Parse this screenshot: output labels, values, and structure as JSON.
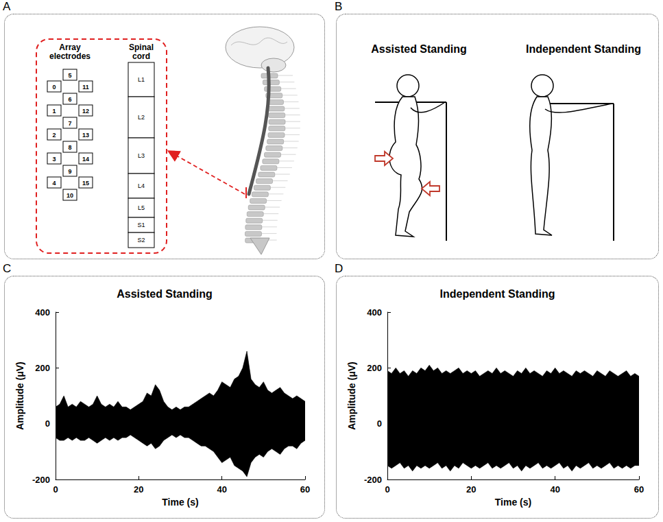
{
  "panels": [
    {
      "letter": "A",
      "array_title": "Array electrodes",
      "spinal_title": "Spinal cord",
      "electrodes": {
        "left": [
          0,
          1,
          2,
          3,
          4
        ],
        "middle": [
          5,
          6,
          7,
          8,
          9,
          10
        ],
        "right": [
          11,
          12,
          13,
          14,
          15
        ]
      },
      "segments": [
        "L1",
        "L2",
        "L3",
        "L4",
        "L5",
        "S1",
        "S2"
      ]
    },
    {
      "letter": "B",
      "left_title": "Assisted Standing",
      "right_title": "Independent Standing"
    },
    {
      "letter": "C"
    },
    {
      "letter": "D"
    }
  ],
  "chart_data": [
    {
      "type": "band",
      "title": "Assisted Standing",
      "x_label": "Time (s)",
      "y_label": "Amplitude (μV)",
      "color": "#000000",
      "xlim": [
        0,
        60
      ],
      "xticks": [
        0,
        20,
        40,
        60
      ],
      "ylim": [
        -200,
        400
      ],
      "yticks": [
        -200,
        0,
        200,
        400
      ],
      "grid": false,
      "x": [
        0,
        1,
        2,
        3,
        4,
        5,
        6,
        7,
        8,
        9,
        10,
        11,
        12,
        13,
        14,
        15,
        16,
        17,
        18,
        19,
        20,
        21,
        22,
        23,
        24,
        25,
        26,
        27,
        28,
        29,
        30,
        31,
        32,
        33,
        34,
        35,
        36,
        37,
        38,
        39,
        40,
        41,
        42,
        43,
        44,
        45,
        46,
        47,
        48,
        49,
        50,
        51,
        52,
        53,
        54,
        55,
        56,
        57,
        58,
        59,
        60
      ],
      "upper": [
        60,
        70,
        100,
        60,
        70,
        60,
        80,
        70,
        60,
        70,
        100,
        70,
        60,
        70,
        60,
        80,
        60,
        60,
        50,
        60,
        70,
        80,
        110,
        100,
        140,
        120,
        80,
        60,
        50,
        60,
        50,
        60,
        60,
        70,
        80,
        90,
        100,
        110,
        100,
        120,
        150,
        140,
        130,
        160,
        170,
        200,
        260,
        160,
        140,
        130,
        150,
        120,
        110,
        120,
        130,
        110,
        100,
        90,
        100,
        90,
        80
      ],
      "lower": [
        -50,
        -60,
        -60,
        -50,
        -60,
        -50,
        -60,
        -60,
        -50,
        -60,
        -70,
        -60,
        -50,
        -60,
        -50,
        -60,
        -50,
        -50,
        -40,
        -50,
        -60,
        -70,
        -80,
        -70,
        -90,
        -80,
        -60,
        -50,
        -40,
        -50,
        -40,
        -50,
        -50,
        -60,
        -70,
        -80,
        -80,
        -90,
        -100,
        -120,
        -140,
        -130,
        -120,
        -150,
        -160,
        -170,
        -190,
        -140,
        -120,
        -110,
        -120,
        -100,
        -90,
        -100,
        -110,
        -90,
        -80,
        -80,
        -90,
        -70,
        -60
      ]
    },
    {
      "type": "band",
      "title": "Independent Standing",
      "x_label": "Time (s)",
      "y_label": "Amplitude (μV)",
      "color": "#000000",
      "xlim": [
        0,
        60
      ],
      "xticks": [
        0,
        20,
        40,
        60
      ],
      "ylim": [
        -200,
        400
      ],
      "yticks": [
        -200,
        0,
        200,
        400
      ],
      "grid": false,
      "x": [
        0,
        1,
        2,
        3,
        4,
        5,
        6,
        7,
        8,
        9,
        10,
        11,
        12,
        13,
        14,
        15,
        16,
        17,
        18,
        19,
        20,
        21,
        22,
        23,
        24,
        25,
        26,
        27,
        28,
        29,
        30,
        31,
        32,
        33,
        34,
        35,
        36,
        37,
        38,
        39,
        40,
        41,
        42,
        43,
        44,
        45,
        46,
        47,
        48,
        49,
        50,
        51,
        52,
        53,
        54,
        55,
        56,
        57,
        58,
        59,
        60
      ],
      "upper": [
        190,
        180,
        200,
        180,
        190,
        170,
        190,
        180,
        200,
        190,
        210,
        190,
        200,
        180,
        190,
        180,
        190,
        200,
        180,
        190,
        180,
        190,
        170,
        180,
        190,
        180,
        200,
        180,
        190,
        180,
        170,
        190,
        180,
        200,
        180,
        190,
        180,
        170,
        190,
        180,
        200,
        180,
        190,
        180,
        170,
        190,
        180,
        190,
        180,
        170,
        190,
        180,
        170,
        190,
        180,
        170,
        180,
        190,
        170,
        180,
        170
      ],
      "lower": [
        -150,
        -160,
        -150,
        -140,
        -160,
        -150,
        -170,
        -150,
        -160,
        -150,
        -160,
        -150,
        -140,
        -160,
        -150,
        -170,
        -150,
        -160,
        -140,
        -150,
        -160,
        -150,
        -160,
        -150,
        -140,
        -160,
        -150,
        -160,
        -150,
        -140,
        -160,
        -150,
        -170,
        -150,
        -160,
        -150,
        -140,
        -160,
        -150,
        -160,
        -150,
        -140,
        -160,
        -150,
        -170,
        -150,
        -160,
        -150,
        -140,
        -160,
        -150,
        -160,
        -150,
        -140,
        -160,
        -150,
        -160,
        -150,
        -160,
        -150,
        -150
      ]
    }
  ]
}
